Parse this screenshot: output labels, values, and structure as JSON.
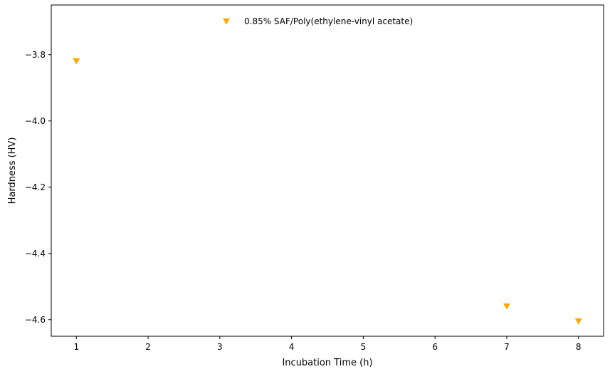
{
  "chart_data": {
    "type": "scatter",
    "title": "",
    "xlabel": "Incubation Time (h)",
    "ylabel": "Hardness (HV)",
    "xlim": [
      0.65,
      8.35
    ],
    "ylim": [
      -4.65,
      -3.65
    ],
    "xticks": [
      1,
      2,
      3,
      4,
      5,
      6,
      7,
      8
    ],
    "xtick_labels": [
      "1",
      "2",
      "3",
      "4",
      "5",
      "6",
      "7",
      "8"
    ],
    "yticks": [
      -3.8,
      -4.0,
      -4.2,
      -4.4,
      -4.6
    ],
    "ytick_labels": [
      "−3.8",
      "−4.0",
      "−4.2",
      "−4.4",
      "−4.6"
    ],
    "grid": false,
    "legend_position": "upper center",
    "series": [
      {
        "name": "0.85% SAF/Poly(ethylene-vinyl acetate)",
        "color": "#FFA500",
        "marker": "triangle-down",
        "x": [
          1,
          7,
          8
        ],
        "y": [
          -3.82,
          -4.56,
          -4.605
        ]
      }
    ]
  }
}
